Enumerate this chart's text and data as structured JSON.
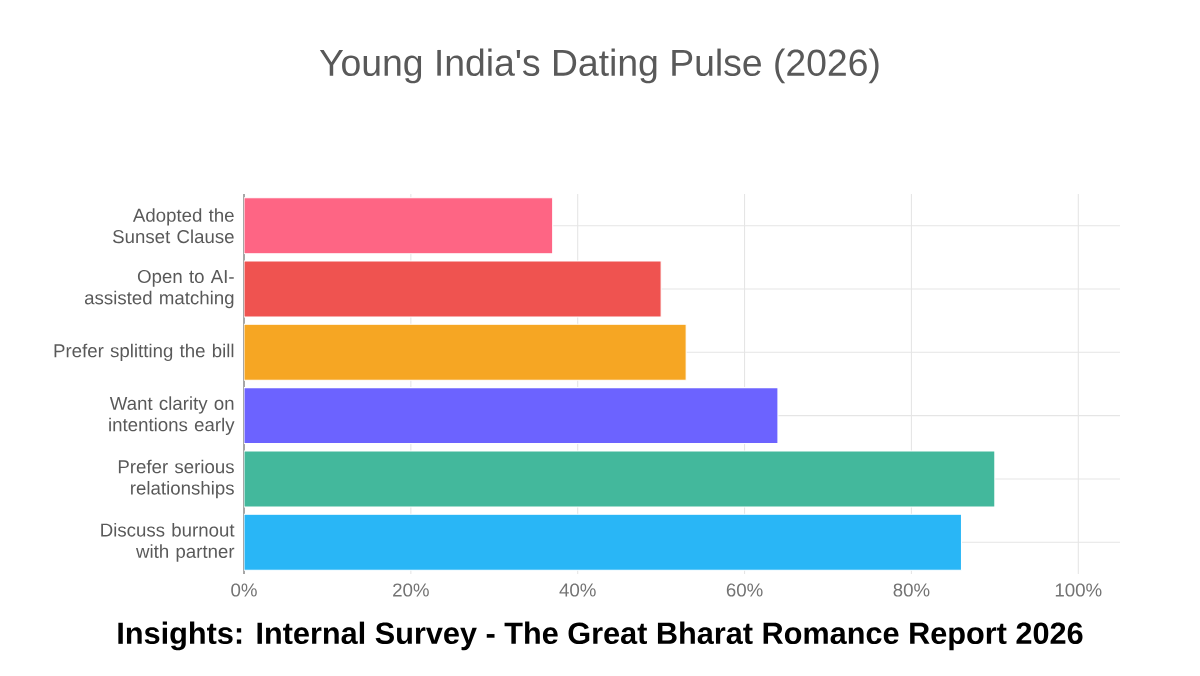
{
  "chart_data": {
    "type": "bar",
    "orientation": "horizontal",
    "title": "Young India's Dating Pulse (2026)",
    "categories": [
      "Adopted the Sunset Clause",
      "Open to AI-assisted matching",
      "Prefer splitting the bill",
      "Want clarity on intentions early",
      "Prefer serious relationships",
      "Discuss burnout with partner"
    ],
    "values": [
      37,
      50,
      53,
      64,
      90,
      86
    ],
    "colors": [
      "#fe6584",
      "#ef5350",
      "#f6a623",
      "#6c63ff",
      "#43b89c",
      "#29b6f6"
    ],
    "xlim": [
      0,
      105
    ],
    "xticks": [
      {
        "value": 0,
        "label": "0%"
      },
      {
        "value": 20,
        "label": "20%"
      },
      {
        "value": 40,
        "label": "40%"
      },
      {
        "value": 60,
        "label": "60%"
      },
      {
        "value": 80,
        "label": "80%"
      },
      {
        "value": 100,
        "label": "100%"
      }
    ],
    "grid": true,
    "annotations": [
      "Insights: Internal Survey - The Great Bharat Romance Report 2026"
    ]
  }
}
